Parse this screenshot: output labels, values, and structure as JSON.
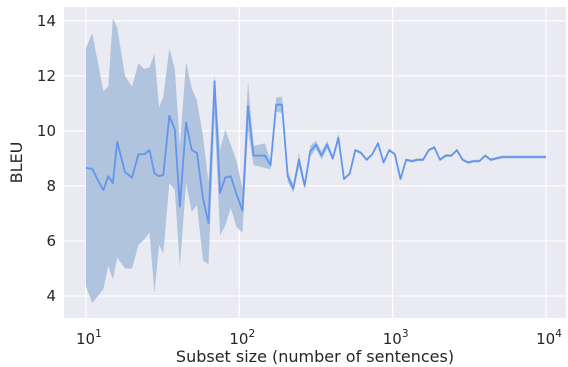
{
  "chart_data": {
    "type": "line",
    "xlabel": "Subset size (number of sentences)",
    "ylabel": "BLEU",
    "xscale": "log",
    "xlim": [
      7.2,
      13500
    ],
    "ylim": [
      3.2,
      14.5
    ],
    "yticks": [
      4,
      6,
      8,
      10,
      12,
      14
    ],
    "xticks": [
      {
        "value": 10,
        "base": "10",
        "exp": "1"
      },
      {
        "value": 100,
        "base": "10",
        "exp": "2"
      },
      {
        "value": 1000,
        "base": "10",
        "exp": "3"
      },
      {
        "value": 10000,
        "base": "10",
        "exp": "4"
      }
    ],
    "grid": true,
    "legend": "none",
    "colors": {
      "line": "#6495ed",
      "band": "#b0c4de",
      "background": "#eaeaf2",
      "grid": "#ffffff"
    },
    "series": [
      {
        "x": [
          10,
          11,
          12,
          13,
          14,
          15,
          16,
          18,
          20,
          22,
          24,
          26,
          28,
          30,
          32,
          35,
          38,
          41,
          45,
          49,
          53,
          58,
          63,
          69,
          75,
          81,
          88,
          96,
          105,
          114,
          124,
          135,
          147,
          160,
          174,
          190,
          207,
          225,
          245,
          267,
          290,
          316,
          344,
          374,
          407,
          443,
          482,
          525,
          571,
          622,
          677,
          737,
          802,
          873,
          950,
          1034,
          1125,
          1225,
          1333,
          1451,
          1579,
          1719,
          1871,
          2036,
          2216,
          2412,
          2625,
          2857,
          3110,
          3385,
          3684,
          4010,
          4365,
          4751,
          5171,
          5628,
          6126,
          6668,
          7258,
          7900,
          8598,
          9358,
          10000
        ],
        "y": [
          8.65,
          8.62,
          8.2,
          7.85,
          8.35,
          8.1,
          9.6,
          8.5,
          8.3,
          9.15,
          9.15,
          9.3,
          8.45,
          8.35,
          8.4,
          10.55,
          10.05,
          7.25,
          10.3,
          9.3,
          9.2,
          7.55,
          6.65,
          11.8,
          7.75,
          8.3,
          8.35,
          7.7,
          7.1,
          10.9,
          9.1,
          9.1,
          9.1,
          8.75,
          10.95,
          10.95,
          8.35,
          7.9,
          8.95,
          8.0,
          9.25,
          9.5,
          9.1,
          9.5,
          9.0,
          9.75,
          8.25,
          8.45,
          9.3,
          9.2,
          8.95,
          9.15,
          9.55,
          8.85,
          9.3,
          9.15,
          8.25,
          8.95,
          8.9,
          8.95,
          8.95,
          9.3,
          9.4,
          8.95,
          9.1,
          9.1,
          9.3,
          8.95,
          8.85,
          8.9,
          8.9,
          9.1,
          8.95,
          9.0,
          9.05,
          9.05,
          9.05,
          9.05,
          9.05,
          9.05,
          9.05,
          9.05,
          9.05
        ],
        "ci_lower": [
          4.35,
          3.75,
          4.0,
          4.25,
          5.1,
          4.6,
          5.4,
          5.0,
          5.0,
          5.85,
          6.05,
          6.3,
          4.1,
          5.85,
          5.55,
          8.1,
          7.85,
          5.05,
          8.1,
          7.05,
          7.3,
          5.3,
          5.15,
          10.55,
          6.2,
          6.55,
          7.2,
          6.5,
          6.3,
          10.0,
          8.75,
          8.7,
          8.65,
          8.6,
          10.7,
          10.65,
          8.15,
          7.75,
          8.7,
          7.9,
          9.05,
          9.35,
          8.95,
          9.35,
          8.9,
          9.6,
          8.2,
          8.4,
          9.25,
          9.15,
          8.9,
          9.1,
          9.5,
          8.8,
          9.25,
          9.1,
          8.2,
          8.9,
          8.85,
          8.9,
          8.9,
          9.25,
          9.35,
          8.9,
          9.05,
          9.05,
          9.25,
          8.9,
          8.8,
          8.85,
          8.85,
          9.05,
          8.9,
          8.95,
          9.0,
          9.0,
          9.0,
          9.0,
          9.0,
          9.0,
          9.0,
          9.0,
          9.0
        ],
        "ci_upper": [
          13.0,
          13.55,
          12.45,
          11.45,
          11.6,
          14.1,
          13.75,
          12.0,
          11.6,
          12.45,
          12.25,
          12.3,
          12.8,
          10.85,
          11.25,
          13.0,
          12.25,
          9.45,
          12.5,
          11.55,
          11.1,
          9.8,
          8.15,
          12.05,
          9.3,
          10.05,
          9.5,
          8.9,
          7.9,
          11.8,
          9.45,
          9.5,
          9.55,
          8.9,
          11.2,
          11.25,
          8.55,
          8.05,
          9.2,
          8.1,
          9.45,
          9.65,
          9.25,
          9.65,
          9.1,
          9.9,
          8.3,
          8.5,
          9.35,
          9.25,
          9.0,
          9.2,
          9.6,
          8.9,
          9.35,
          9.2,
          8.3,
          9.0,
          8.95,
          9.0,
          9.0,
          9.35,
          9.45,
          9.0,
          9.15,
          9.15,
          9.35,
          9.0,
          8.9,
          8.95,
          8.95,
          9.15,
          9.0,
          9.05,
          9.1,
          9.1,
          9.1,
          9.1,
          9.1,
          9.1,
          9.1,
          9.1,
          9.1
        ]
      }
    ]
  }
}
